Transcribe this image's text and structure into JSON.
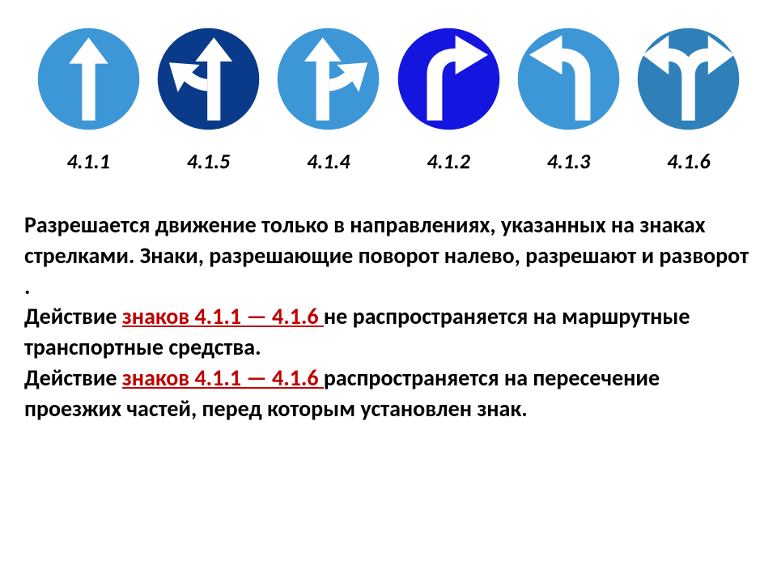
{
  "signs": [
    {
      "id": "sign-4-1-1",
      "label": "4.1.1",
      "bg": "#3d97d6",
      "border": "#ffffff",
      "type": "straight"
    },
    {
      "id": "sign-4-1-5",
      "label": "4.1.5",
      "bg": "#0a3a8a",
      "border": "#ffffff",
      "type": "straight-left"
    },
    {
      "id": "sign-4-1-4",
      "label": "4.1.4",
      "bg": "#3d97d6",
      "border": "#ffffff",
      "type": "straight-right"
    },
    {
      "id": "sign-4-1-2",
      "label": "4.1.2",
      "bg": "#1515e0",
      "border": "#ffffff",
      "type": "right"
    },
    {
      "id": "sign-4-1-3",
      "label": "4.1.3",
      "bg": "#3d97d6",
      "border": "#ffffff",
      "type": "left"
    },
    {
      "id": "sign-4-1-6",
      "label": "4.1.6",
      "bg": "#2f80b8",
      "border": "#ffffff",
      "type": "left-right"
    }
  ],
  "text": {
    "p1a": "Разрешается движение только в направлениях, указанных на знаках стрелками. Знаки, разрешающие поворот налево, разрешают и разворот .",
    "p2a": "Действие ",
    "link1": "знаков 4.1.1 — 4.1.6 ",
    "p2b": "не распространяется на маршрутные транспортные средства.",
    "p3a": "Действие ",
    "link2": "знаков 4.1.1 — 4.1.6 ",
    "p3b": "распространяется на пересечение проезжих частей, перед которым установлен знак."
  },
  "colors": {
    "link": "#c00000",
    "text": "#000000",
    "bg": "#ffffff",
    "arrow": "#ffffff"
  }
}
